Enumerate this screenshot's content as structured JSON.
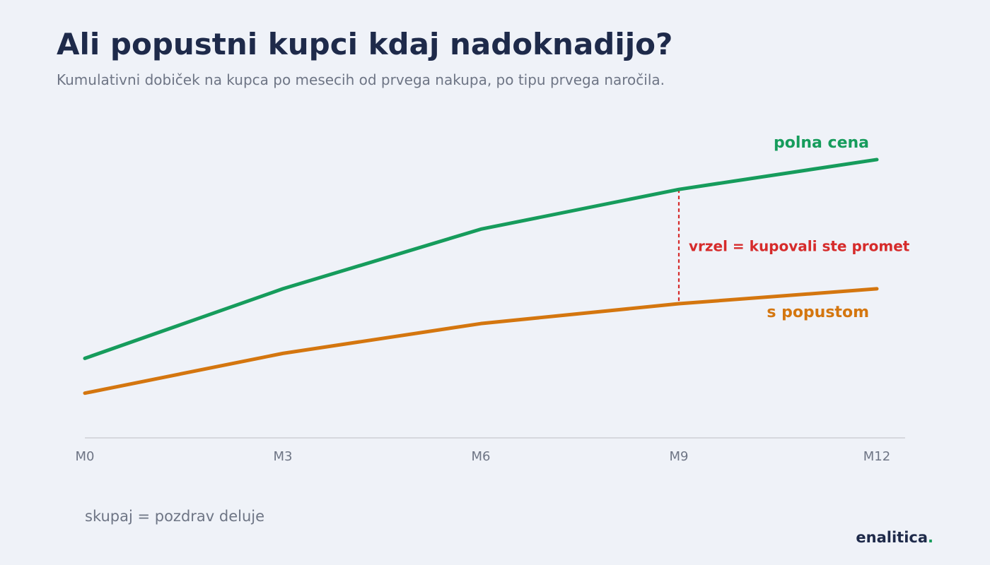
{
  "header": {
    "title": "Ali popustni kupci kdaj nadoknadijo?",
    "subtitle": "Kumulativni dobiček na kupca po mesecih od prvega nakupa, po tipu prvega naročila."
  },
  "chart_data": {
    "type": "line",
    "title": "Ali popustni kupci kdaj nadoknadijo?",
    "subtitle": "Kumulativni dobiček na kupca po mesecih od prvega nakupa, po tipu prvega naročila.",
    "xlabel": "",
    "ylabel": "",
    "categories": [
      "M0",
      "M3",
      "M6",
      "M9",
      "M12"
    ],
    "ylim": [
      0,
      110
    ],
    "grid": false,
    "legend": "direct-labels",
    "series": [
      {
        "name": "polna cena",
        "values": [
          32,
          60,
          84,
          100,
          112
        ],
        "color": "#169c5c"
      },
      {
        "name": "s popustom",
        "values": [
          18,
          34,
          46,
          54,
          60
        ],
        "color": "#d4760f"
      }
    ],
    "annotations": [
      {
        "text": "vrzel = kupovali ste promet",
        "at_category": "M9",
        "color": "#d62b2b"
      }
    ]
  },
  "footer": {
    "note": "skupaj = pozdrav deluje",
    "brand_name": "enalitica",
    "brand_dot": "."
  }
}
